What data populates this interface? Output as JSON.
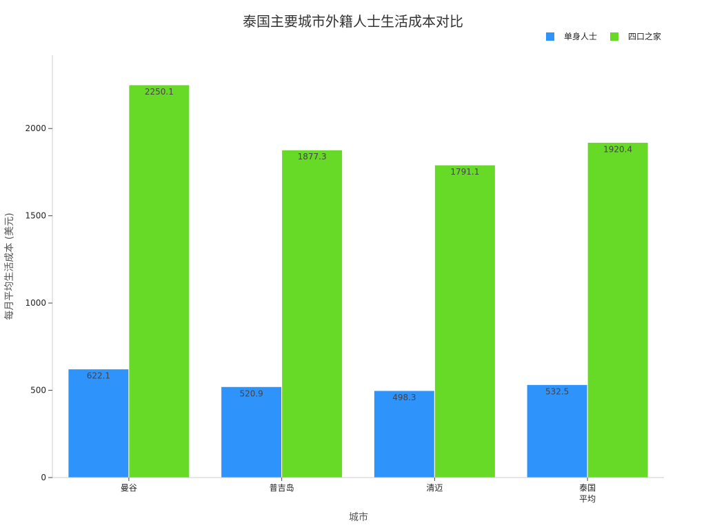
{
  "chart_data": {
    "type": "bar",
    "title": "泰国主要城市外籍人士生活成本对比",
    "xlabel": "城市",
    "ylabel": "每月平均生活成本 (美元)",
    "categories": [
      [
        "曼谷"
      ],
      [
        "普吉岛"
      ],
      [
        "清迈"
      ],
      [
        "泰国",
        "平均"
      ]
    ],
    "series": [
      {
        "name": "单身人士",
        "color": "#2E93FA",
        "values": [
          622.1,
          520.9,
          498.3,
          532.5
        ]
      },
      {
        "name": "四口之家",
        "color": "#66DA26",
        "values": [
          2250.1,
          1877.3,
          1791.1,
          1920.4
        ]
      }
    ],
    "ylim": [
      0,
      2420
    ],
    "yticks": [
      0,
      500,
      1000,
      1500,
      2000
    ],
    "grid": false,
    "legend_position": "top-right"
  }
}
